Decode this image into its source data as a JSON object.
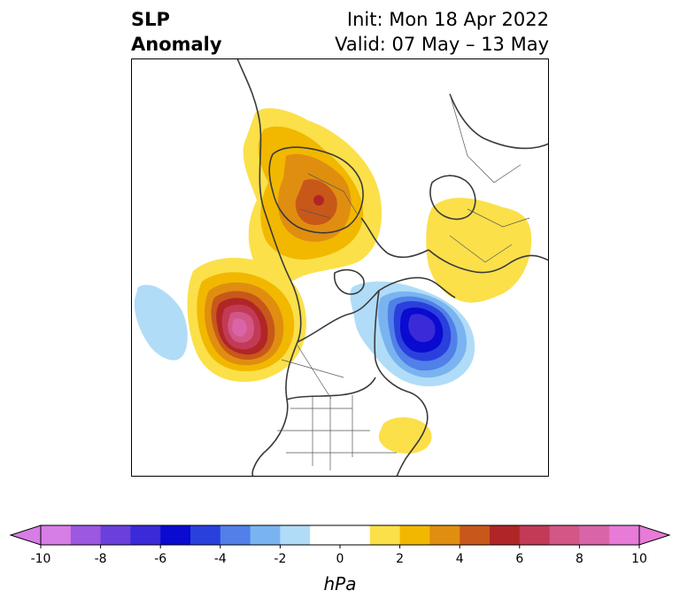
{
  "title": {
    "line1": "SLP",
    "line2": "Anomaly",
    "init": "Init: Mon 18 Apr 2022",
    "valid": "Valid: 07 May – 13 May"
  },
  "map": {
    "projection": "polar stereographic (North America / Arctic)",
    "features": [
      "coastlines",
      "country borders",
      "US state borders",
      "Canadian provinces",
      "Russian oblasts"
    ],
    "anomalies": [
      {
        "region": "North Pacific / Gulf of Alaska",
        "sign": "positive",
        "peak_hPa": 10
      },
      {
        "region": "Central Arctic / Siberia",
        "sign": "positive",
        "peak_hPa": 6
      },
      {
        "region": "Northern Europe / Scandinavia",
        "sign": "positive",
        "peak_hPa": 2
      },
      {
        "region": "US East Coast offshore",
        "sign": "positive",
        "peak_hPa": 2
      },
      {
        "region": "Labrador Sea / Greenland",
        "sign": "negative",
        "peak_hPa": -8
      },
      {
        "region": "Central North Pacific",
        "sign": "negative",
        "peak_hPa": -2
      }
    ]
  },
  "colorbar": {
    "units": "hPa",
    "extend": "both",
    "min": -10,
    "max": 10,
    "step": 1,
    "tick_labels": [
      "-10",
      "-8",
      "-6",
      "-4",
      "-2",
      "0",
      "2",
      "4",
      "6",
      "8",
      "10"
    ],
    "colors": [
      "#d77ee6",
      "#9c58e0",
      "#6a3fdb",
      "#3a2ad8",
      "#0a0ad0",
      "#2a40dc",
      "#5080e8",
      "#7ab4f0",
      "#b0dcf8",
      "#ffffff",
      "#ffffff",
      "#fbe04a",
      "#f2b800",
      "#e08e10",
      "#c8581a",
      "#b02626",
      "#c23a56",
      "#d25686",
      "#da64a8",
      "#e87ad8"
    ],
    "extend_low_color": "#d77ee6",
    "extend_high_color": "#e87ad8"
  }
}
